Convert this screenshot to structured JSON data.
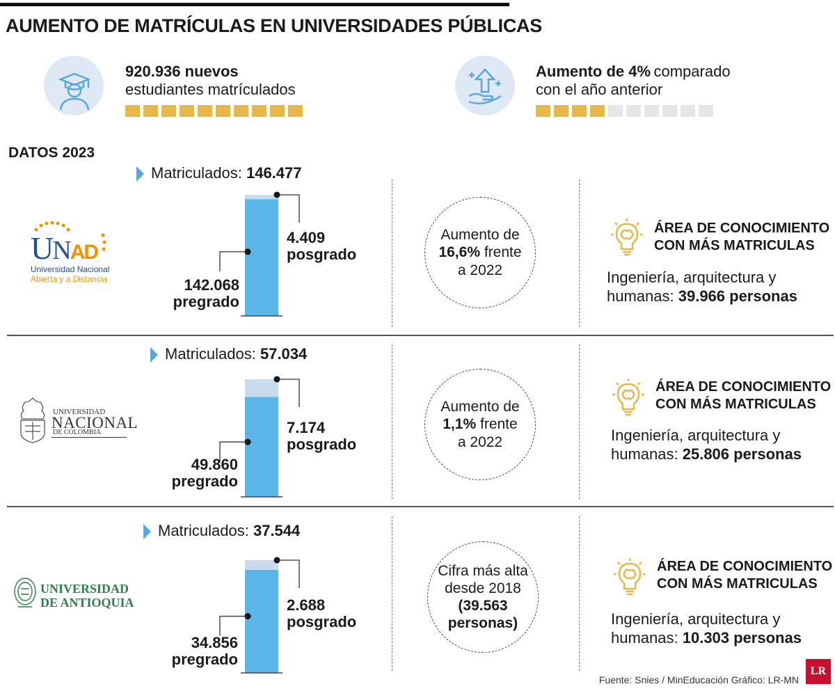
{
  "header": {
    "title": "AUMENTO DE MATRÍCULAS EN UNIVERSIDADES PÚBLICAS"
  },
  "stats": {
    "students": {
      "bold": "920.936 nuevos",
      "normal": "estudiantes matrículados",
      "filled": 10,
      "total": 10
    },
    "increase": {
      "bold": "Aumento de 4%",
      "normal_a": "comparado",
      "normal_b": "con el año anterior",
      "filled": 4,
      "total": 10
    }
  },
  "colors": {
    "gold": "#e6b84a",
    "gray_square": "#e6e6e6",
    "bar": "#5ab6e8",
    "bar_light": "#c9dcef",
    "icon_bg": "#dfe9f6",
    "triangle": "#5aa7dc"
  },
  "section_label": "DATOS 2023",
  "universities": [
    {
      "logo": {
        "line1": "UNAD",
        "line2": "Universidad Nacional",
        "line3": "Abierta y a Distancia"
      },
      "matric_label": "Matriculados:",
      "matric_value": "146.477",
      "pregrado_value": "142.068",
      "pregrado_label": "pregrado",
      "posgrado_value": "4.409",
      "posgrado_label": "posgrado",
      "circle": {
        "l1": "Aumento de",
        "l2b": "16,6%",
        "l2": " frente",
        "l3": "a 2022"
      },
      "area_title_1": "ÁREA DE CONOCIMIENTO",
      "area_title_2": "CON MÁS MATRICULAS",
      "area_text_1": "Ingeniería, arquitectura y",
      "area_text_2": "humanas: ",
      "area_bold": "39.966 personas"
    },
    {
      "logo": {
        "line1": "UNIVERSIDAD",
        "line2": "NACIONAL",
        "line3": "DE COLOMBIA"
      },
      "matric_label": "Matriculados:",
      "matric_value": "57.034",
      "pregrado_value": "49.860",
      "pregrado_label": "pregrado",
      "posgrado_value": "7.174",
      "posgrado_label": "posgrado",
      "circle": {
        "l1": "Aumento de",
        "l2b": "1,1%",
        "l2": " frente",
        "l3": "a 2022"
      },
      "area_title_1": "ÁREA DE CONOCIMIENTO",
      "area_title_2": "CON MÁS MATRICULAS",
      "area_text_1": "Ingeniería, arquitectura y",
      "area_text_2": "humanas: ",
      "area_bold": "25.806 personas"
    },
    {
      "logo": {
        "line1": "UNIVERSIDAD",
        "line2": "DE ANTIOQUIA"
      },
      "matric_label": "Matriculados:",
      "matric_value": "37.544",
      "pregrado_value": "34.856",
      "pregrado_label": "pregrado",
      "posgrado_value": "2.688",
      "posgrado_label": "posgrado",
      "circle": {
        "l1": "Cifra más alta",
        "l2": "desde 2018",
        "l3b": "(39.563",
        "l4b": "personas)"
      },
      "area_title_1": "ÁREA DE CONOCIMIENTO",
      "area_title_2": "CON MÁS MATRICULAS",
      "area_text_1": "Ingeniería, arquitectura y",
      "area_text_2": "humanas: ",
      "area_bold": "10.303 personas"
    }
  ],
  "chart_data": [
    {
      "type": "bar",
      "categories": [
        "pregrado",
        "posgrado"
      ],
      "stacked": true,
      "values": [
        142068,
        4409
      ],
      "total": 146477
    },
    {
      "type": "bar",
      "categories": [
        "pregrado",
        "posgrado"
      ],
      "stacked": true,
      "values": [
        49860,
        7174
      ],
      "total": 57034
    },
    {
      "type": "bar",
      "categories": [
        "pregrado",
        "posgrado"
      ],
      "stacked": true,
      "values": [
        34856,
        2688
      ],
      "total": 37544
    }
  ],
  "footer": {
    "source": "Fuente: Snies / MinEducación  Gráfico: LR-MN",
    "badge": "LR"
  }
}
